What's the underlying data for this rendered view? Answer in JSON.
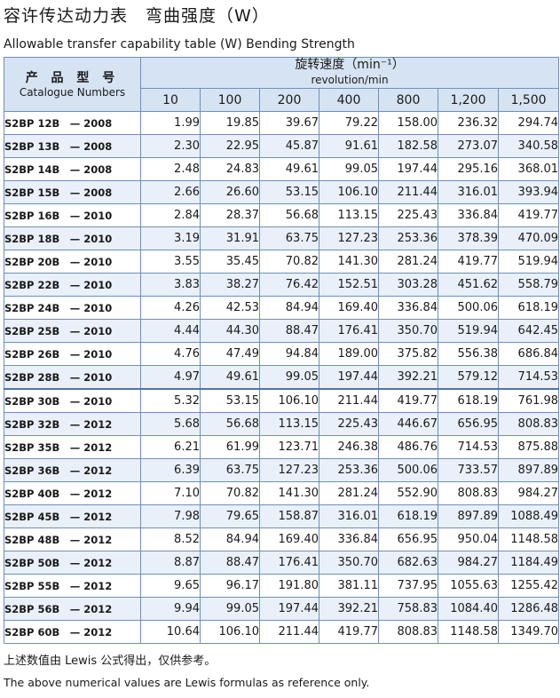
{
  "title": "容许传达动力表　弯曲强度（W）",
  "subtitle": "Allowable transfer capability table (W) Bending Strength",
  "table": {
    "model_header_zh": "产 品 型 号",
    "model_header_en": "Catalogue Numbers",
    "speed_header_zh": "旋转速度（min⁻¹）",
    "speed_header_en": "revolution/min",
    "speeds": [
      "10",
      "100",
      "200",
      "400",
      "800",
      "1,200",
      "1,500"
    ],
    "rows": [
      {
        "model": "S2BP 12B　— 2008",
        "values": [
          "1.99",
          "19.85",
          "39.67",
          "79.22",
          "158.00",
          "236.32",
          "294.74"
        ]
      },
      {
        "model": "S2BP 13B　— 2008",
        "values": [
          "2.30",
          "22.95",
          "45.87",
          "91.61",
          "182.58",
          "273.07",
          "340.58"
        ]
      },
      {
        "model": "S2BP 14B　— 2008",
        "values": [
          "2.48",
          "24.83",
          "49.61",
          "99.05",
          "197.44",
          "295.16",
          "368.01"
        ]
      },
      {
        "model": "S2BP 15B　— 2008",
        "values": [
          "2.66",
          "26.60",
          "53.15",
          "106.10",
          "211.44",
          "316.01",
          "393.94"
        ]
      },
      {
        "model": "S2BP 16B　— 2010",
        "values": [
          "2.84",
          "28.37",
          "56.68",
          "113.15",
          "225.43",
          "336.84",
          "419.77"
        ]
      },
      {
        "model": "S2BP 18B　— 2010",
        "values": [
          "3.19",
          "31.91",
          "63.75",
          "127.23",
          "253.36",
          "378.39",
          "470.09"
        ]
      },
      {
        "model": "S2BP 20B　— 2010",
        "values": [
          "3.55",
          "35.45",
          "70.82",
          "141.30",
          "281.24",
          "419.77",
          "519.94"
        ]
      },
      {
        "model": "S2BP 22B　— 2010",
        "values": [
          "3.83",
          "38.27",
          "76.42",
          "152.51",
          "303.28",
          "451.62",
          "558.79"
        ]
      },
      {
        "model": "S2BP 24B　— 2010",
        "values": [
          "4.26",
          "42.53",
          "84.94",
          "169.40",
          "336.84",
          "500.06",
          "618.19"
        ]
      },
      {
        "model": "S2BP 25B　— 2010",
        "values": [
          "4.44",
          "44.30",
          "88.47",
          "176.41",
          "350.70",
          "519.94",
          "642.45"
        ]
      },
      {
        "model": "S2BP 26B　— 2010",
        "values": [
          "4.76",
          "47.49",
          "94.84",
          "189.00",
          "375.82",
          "556.38",
          "686.84"
        ]
      },
      {
        "model": "S2BP 28B　— 2010",
        "values": [
          "4.97",
          "49.61",
          "99.05",
          "197.44",
          "392.21",
          "579.12",
          "714.53"
        ]
      },
      {
        "model": "S2BP 30B　— 2010",
        "values": [
          "5.32",
          "53.15",
          "106.10",
          "211.44",
          "419.77",
          "618.19",
          "761.98"
        ]
      },
      {
        "model": "S2BP 32B　— 2012",
        "values": [
          "5.68",
          "56.68",
          "113.15",
          "225.43",
          "446.67",
          "656.95",
          "808.83"
        ]
      },
      {
        "model": "S2BP 35B　— 2012",
        "values": [
          "6.21",
          "61.99",
          "123.71",
          "246.38",
          "486.76",
          "714.53",
          "875.88"
        ]
      },
      {
        "model": "S2BP 36B　— 2012",
        "values": [
          "6.39",
          "63.75",
          "127.23",
          "253.36",
          "500.06",
          "733.57",
          "897.89"
        ]
      },
      {
        "model": "S2BP 40B　— 2012",
        "values": [
          "7.10",
          "70.82",
          "141.30",
          "281.24",
          "552.90",
          "808.83",
          "984.27"
        ]
      },
      {
        "model": "S2BP 45B　— 2012",
        "values": [
          "7.98",
          "79.65",
          "158.87",
          "316.01",
          "618.19",
          "897.89",
          "1088.49"
        ]
      },
      {
        "model": "S2BP 48B　— 2012",
        "values": [
          "8.52",
          "84.94",
          "169.40",
          "336.84",
          "656.95",
          "950.04",
          "1148.58"
        ]
      },
      {
        "model": "S2BP 50B　— 2012",
        "values": [
          "8.87",
          "88.47",
          "176.41",
          "350.70",
          "682.63",
          "984.27",
          "1184.49"
        ]
      },
      {
        "model": "S2BP 55B　— 2012",
        "values": [
          "9.65",
          "96.17",
          "191.80",
          "381.11",
          "737.95",
          "1055.63",
          "1255.42"
        ]
      },
      {
        "model": "S2BP 56B　— 2012",
        "values": [
          "9.94",
          "99.05",
          "197.44",
          "392.21",
          "758.83",
          "1084.40",
          "1286.48"
        ]
      },
      {
        "model": "S2BP 60B　— 2012",
        "values": [
          "10.64",
          "106.10",
          "211.44",
          "419.77",
          "808.83",
          "1148.58",
          "1349.70"
        ]
      }
    ]
  },
  "note_zh": "上述数值由 Lewis 公式得出，仅供参考。",
  "note_en": "The above numerical values are Lewis formulas as reference only.",
  "colors": {
    "header_bg": "#d6e3f3",
    "alt_row_bg": "#e9f0f9",
    "border": "#6f8fb8"
  }
}
